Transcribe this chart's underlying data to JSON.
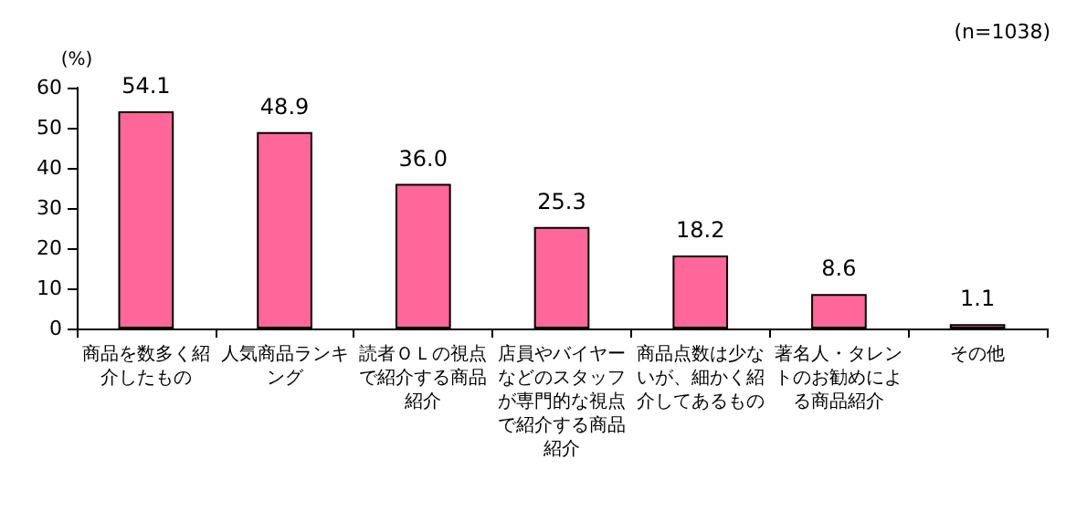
{
  "chart_data": {
    "type": "bar",
    "ylabel": "(%)",
    "annotations": [
      "(n=1038)"
    ],
    "categories": [
      "商品を数多く紹介したもの",
      "人気商品ランキング",
      "読者ＯＬの視点で紹介する商品紹介",
      "店員やバイヤーなどのスタッフが専門的な視点で紹介する商品紹介",
      "商品点数は少ないが、細かく紹介してあるもの",
      "著名人・タレントのお勧めによる商品紹介",
      "その他"
    ],
    "values": [
      54.1,
      48.9,
      36.0,
      25.3,
      18.2,
      8.6,
      1.1
    ],
    "value_labels": [
      "54.1",
      "48.9",
      "36.0",
      "25.3",
      "18.2",
      "8.6",
      "1.1"
    ],
    "color": "#ff6699",
    "ylim": [
      0,
      60
    ],
    "yticks": [
      0,
      10,
      20,
      30,
      40,
      50,
      60
    ],
    "grid": false
  }
}
